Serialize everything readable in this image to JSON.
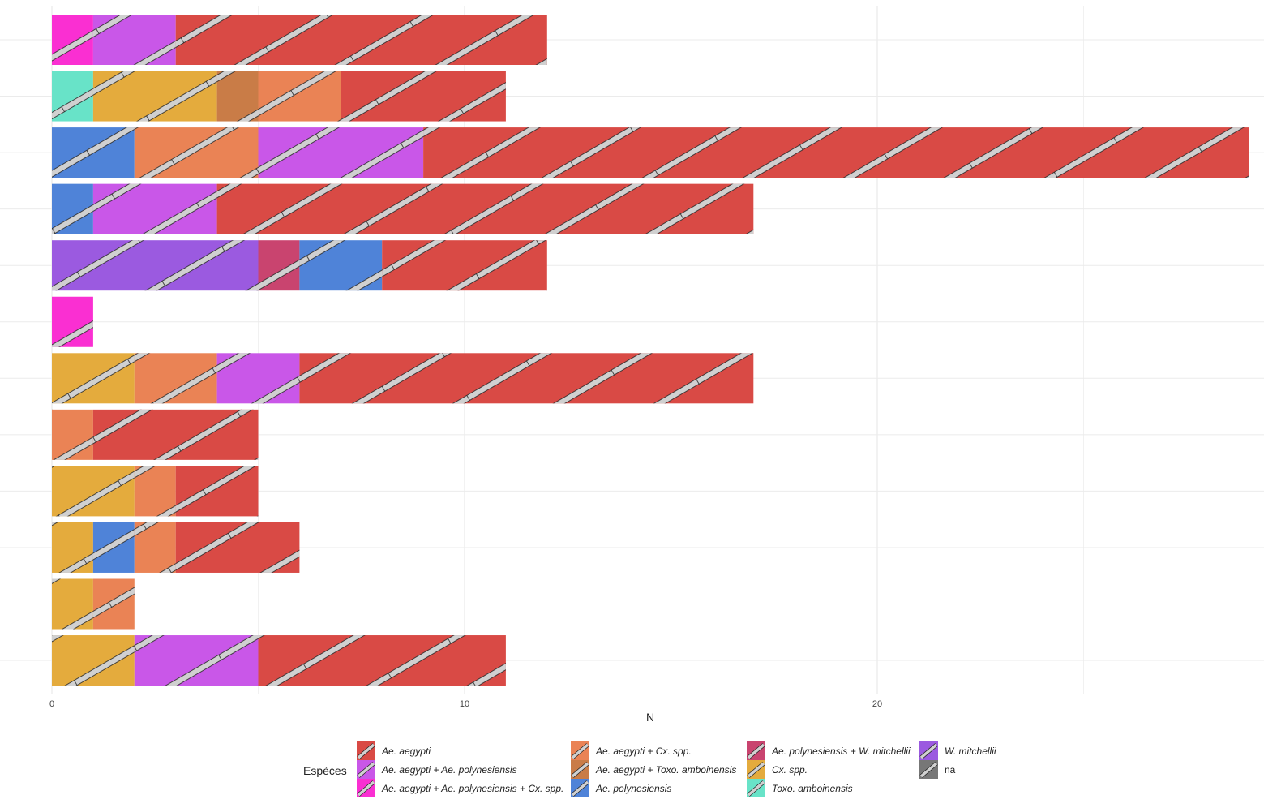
{
  "chart_data": {
    "type": "bar",
    "orientation": "horizontal",
    "stacked": true,
    "title": "",
    "xlabel": "N",
    "ylabel": "",
    "xlim": [
      0,
      29
    ],
    "x_ticks": [
      0,
      10,
      20
    ],
    "grid": true,
    "legend": {
      "title": "Espèces",
      "placement": "bottom"
    },
    "species": [
      {
        "name": "Ae. aegypti",
        "color": "#d94a45"
      },
      {
        "name": "Ae. aegypti + Ae. polynesiensis",
        "color": "#c957e8"
      },
      {
        "name": "Ae. aegypti + Ae. polynesiensis + Cx. spp.",
        "color": "#fa2fd2"
      },
      {
        "name": "Ae. aegypti + Cx. spp.",
        "color": "#ea8355"
      },
      {
        "name": "Ae. aegypti + Toxo. amboinensis",
        "color": "#c97c47"
      },
      {
        "name": "Ae. polynesiensis",
        "color": "#4f83d8"
      },
      {
        "name": "Ae. polynesiensis + W. mitchellii",
        "color": "#c9446f"
      },
      {
        "name": "Cx. spp.",
        "color": "#e4ab3d"
      },
      {
        "name": "Toxo. amboinensis",
        "color": "#68e3c8"
      },
      {
        "name": "W. mitchellii",
        "color": "#9b5ae0"
      },
      {
        "name": "na",
        "color": "#777777"
      }
    ],
    "rows": [
      [
        {
          "s": 2,
          "v": 1
        },
        {
          "s": 1,
          "v": 2
        },
        {
          "s": 0,
          "v": 9
        }
      ],
      [
        {
          "s": 8,
          "v": 1
        },
        {
          "s": 7,
          "v": 3
        },
        {
          "s": 4,
          "v": 1
        },
        {
          "s": 3,
          "v": 2
        },
        {
          "s": 0,
          "v": 4
        }
      ],
      [
        {
          "s": 5,
          "v": 2
        },
        {
          "s": 3,
          "v": 3
        },
        {
          "s": 1,
          "v": 4
        },
        {
          "s": 0,
          "v": 20
        }
      ],
      [
        {
          "s": 5,
          "v": 1
        },
        {
          "s": 1,
          "v": 3
        },
        {
          "s": 0,
          "v": 13
        }
      ],
      [
        {
          "s": 9,
          "v": 5
        },
        {
          "s": 6,
          "v": 1
        },
        {
          "s": 5,
          "v": 2
        },
        {
          "s": 0,
          "v": 4
        }
      ],
      [
        {
          "s": 2,
          "v": 1
        }
      ],
      [
        {
          "s": 7,
          "v": 2
        },
        {
          "s": 3,
          "v": 2
        },
        {
          "s": 1,
          "v": 2
        },
        {
          "s": 0,
          "v": 11
        }
      ],
      [
        {
          "s": 3,
          "v": 1
        },
        {
          "s": 0,
          "v": 4
        }
      ],
      [
        {
          "s": 7,
          "v": 2
        },
        {
          "s": 3,
          "v": 1
        },
        {
          "s": 0,
          "v": 2
        }
      ],
      [
        {
          "s": 7,
          "v": 1
        },
        {
          "s": 5,
          "v": 1
        },
        {
          "s": 3,
          "v": 1
        },
        {
          "s": 0,
          "v": 3
        }
      ],
      [
        {
          "s": 7,
          "v": 1
        },
        {
          "s": 3,
          "v": 1
        }
      ],
      [
        {
          "s": 7,
          "v": 2
        },
        {
          "s": 1,
          "v": 3
        },
        {
          "s": 0,
          "v": 6
        }
      ]
    ]
  }
}
